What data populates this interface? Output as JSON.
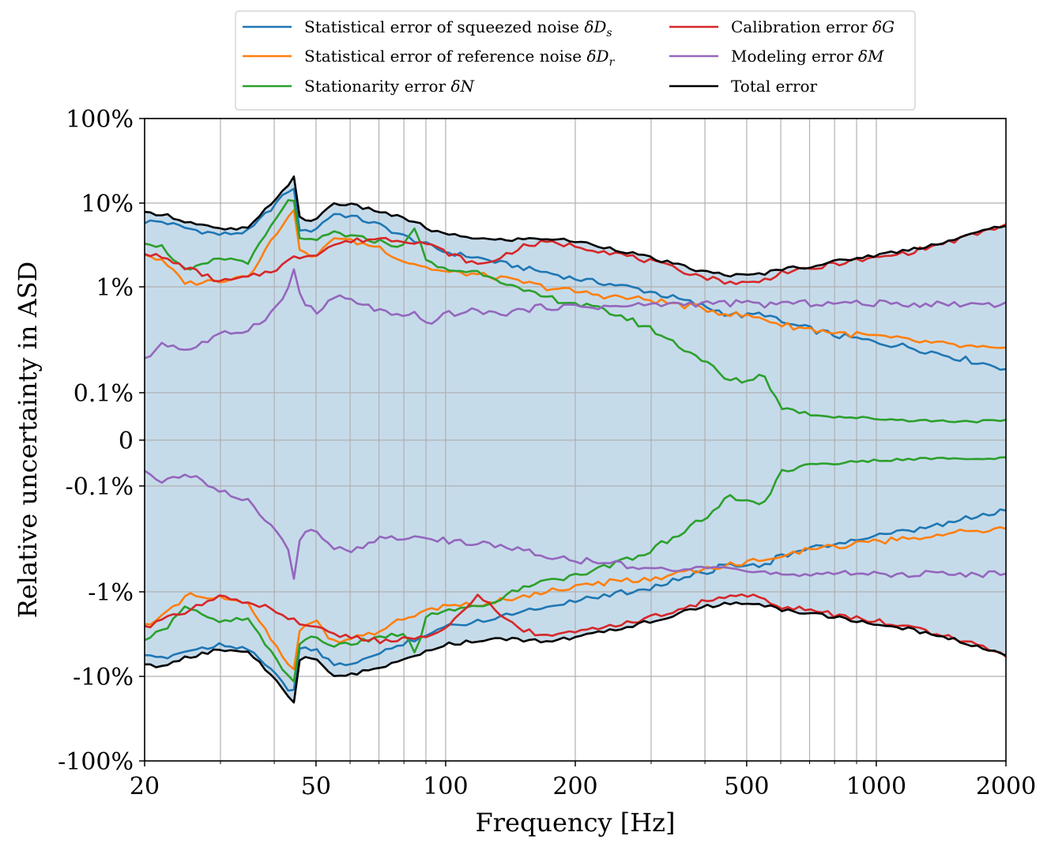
{
  "chart_data": {
    "type": "line",
    "title": "",
    "xlabel": "Frequency [Hz]",
    "ylabel": "Relative uncertainty in ASD",
    "xscale": "log",
    "yscale": "symlog",
    "xlim": [
      20,
      2000
    ],
    "ylim": [
      "-100%",
      "100%"
    ],
    "x_ticks": [
      20,
      50,
      100,
      200,
      500,
      1000,
      2000
    ],
    "x_tick_labels": [
      "20",
      "50",
      "100",
      "200",
      "500",
      "1000",
      "2000"
    ],
    "y_tick_labels": [
      "100%",
      "10%",
      "1%",
      "0.1%",
      "0",
      "-0.1%",
      "-1%",
      "-10%",
      "-100%"
    ],
    "grid": true,
    "legend": "top-center",
    "shaded_band": "Total error",
    "anchors_x": [
      20,
      22,
      25,
      30,
      35,
      40,
      43,
      44,
      46,
      50,
      55,
      60,
      70,
      80,
      85,
      90,
      100,
      120,
      130,
      150,
      170,
      200,
      250,
      300,
      400,
      450,
      500,
      550,
      600,
      700,
      800,
      1000,
      1200,
      1500,
      2000
    ],
    "series": [
      {
        "name": "Statistical error of squeezed noise δDs",
        "color": "#1f77b4",
        "upper": [
          6.0,
          6.0,
          5.0,
          4.2,
          4.6,
          9.5,
          13.5,
          20.0,
          4.3,
          5.0,
          7.5,
          7.0,
          5.5,
          4.0,
          3.6,
          3.2,
          2.6,
          2.2,
          2.0,
          1.7,
          1.5,
          1.25,
          1.05,
          0.9,
          0.65,
          0.56,
          0.53,
          0.56,
          0.46,
          0.4,
          0.35,
          0.3,
          0.27,
          0.22,
          0.17
        ],
        "lower": [
          -6.0,
          -6.0,
          -5.0,
          -4.2,
          -4.6,
          -9.5,
          -13.5,
          -20.0,
          -4.3,
          -5.0,
          -7.5,
          -7.0,
          -5.5,
          -4.0,
          -3.6,
          -3.2,
          -2.6,
          -2.2,
          -2.0,
          -1.7,
          -1.5,
          -1.25,
          -1.05,
          -0.9,
          -0.65,
          -0.56,
          -0.53,
          -0.56,
          -0.46,
          -0.4,
          -0.35,
          -0.3,
          -0.27,
          -0.22,
          -0.17
        ]
      },
      {
        "name": "Statistical error of reference noise δDr",
        "color": "#ff7f0e",
        "upper": [
          2.5,
          2.0,
          1.1,
          1.2,
          1.4,
          4.0,
          7.0,
          10.5,
          2.6,
          2.2,
          4.0,
          3.5,
          3.0,
          2.0,
          1.9,
          1.7,
          1.5,
          1.4,
          1.3,
          1.15,
          1.0,
          0.9,
          0.8,
          0.75,
          0.62,
          0.56,
          0.53,
          0.5,
          0.44,
          0.4,
          0.37,
          0.34,
          0.31,
          0.28,
          0.25
        ],
        "lower": [
          -2.5,
          -2.0,
          -1.1,
          -1.2,
          -1.4,
          -4.0,
          -7.0,
          -10.5,
          -2.6,
          -2.2,
          -4.0,
          -3.5,
          -3.0,
          -2.0,
          -1.9,
          -1.7,
          -1.5,
          -1.4,
          -1.3,
          -1.15,
          -1.0,
          -0.9,
          -0.8,
          -0.75,
          -0.62,
          -0.56,
          -0.53,
          -0.5,
          -0.44,
          -0.4,
          -0.37,
          -0.34,
          -0.31,
          -0.28,
          -0.25
        ]
      },
      {
        "name": "Stationarity error δN",
        "color": "#2ca02c",
        "upper": [
          3.5,
          3.0,
          1.5,
          2.2,
          2.0,
          6.0,
          10.0,
          15.0,
          3.5,
          3.5,
          4.5,
          4.0,
          3.5,
          3.0,
          5.5,
          2.0,
          1.6,
          1.5,
          1.3,
          0.9,
          0.8,
          0.7,
          0.55,
          0.4,
          0.2,
          0.13,
          0.13,
          0.15,
          0.07,
          0.055,
          0.05,
          0.045,
          0.042,
          0.04,
          0.04
        ],
        "lower": [
          -3.5,
          -3.0,
          -1.5,
          -2.2,
          -2.0,
          -6.0,
          -10.0,
          -15.0,
          -3.5,
          -3.5,
          -4.5,
          -4.0,
          -3.5,
          -3.0,
          -5.5,
          -2.0,
          -1.6,
          -1.5,
          -1.3,
          -0.9,
          -0.8,
          -0.7,
          -0.55,
          -0.4,
          -0.2,
          -0.13,
          -0.13,
          -0.15,
          -0.07,
          -0.055,
          -0.05,
          -0.045,
          -0.042,
          -0.04,
          -0.04
        ]
      },
      {
        "name": "Calibration error δG",
        "color": "#d62728",
        "upper": [
          2.6,
          2.2,
          1.7,
          1.15,
          1.3,
          1.6,
          2.0,
          2.2,
          2.3,
          2.5,
          3.2,
          3.5,
          3.8,
          3.6,
          3.5,
          3.3,
          2.6,
          1.8,
          2.1,
          3.0,
          3.4,
          3.1,
          2.5,
          2.0,
          1.3,
          1.15,
          1.1,
          1.2,
          1.5,
          1.6,
          1.9,
          2.2,
          2.6,
          3.5,
          5.5
        ],
        "lower": [
          -2.6,
          -2.2,
          -1.7,
          -1.15,
          -1.3,
          -1.6,
          -2.0,
          -2.2,
          -2.3,
          -2.5,
          -3.2,
          -3.5,
          -3.8,
          -3.6,
          -3.5,
          -3.3,
          -2.6,
          -1.1,
          -1.6,
          -2.8,
          -3.3,
          -3.1,
          -2.5,
          -2.0,
          -1.3,
          -1.15,
          -1.1,
          -1.2,
          -1.5,
          -1.6,
          -1.9,
          -2.2,
          -2.6,
          -3.5,
          -5.5
        ]
      },
      {
        "name": "Modeling error δM",
        "color": "#9467bd",
        "upper": [
          0.2,
          0.3,
          0.25,
          0.35,
          0.4,
          0.6,
          0.9,
          2.0,
          0.8,
          0.55,
          0.8,
          0.75,
          0.6,
          0.5,
          0.55,
          0.45,
          0.55,
          0.6,
          0.55,
          0.6,
          0.65,
          0.65,
          0.65,
          0.68,
          0.7,
          0.7,
          0.7,
          0.68,
          0.7,
          0.7,
          0.7,
          0.7,
          0.69,
          0.69,
          0.69
        ],
        "lower": [
          -0.065,
          -0.09,
          -0.075,
          -0.11,
          -0.14,
          -0.26,
          -0.36,
          -0.9,
          -0.3,
          -0.26,
          -0.38,
          -0.4,
          -0.32,
          -0.3,
          -0.32,
          -0.3,
          -0.33,
          -0.35,
          -0.36,
          -0.4,
          -0.45,
          -0.5,
          -0.55,
          -0.6,
          -0.62,
          -0.63,
          -0.64,
          -0.64,
          -0.66,
          -0.67,
          -0.68,
          -0.68,
          -0.68,
          -0.68,
          -0.68
        ]
      },
      {
        "name": "Total error",
        "color": "#000000",
        "upper": [
          7.5,
          7.5,
          6.0,
          4.8,
          5.0,
          11.0,
          16.0,
          28.0,
          5.8,
          6.5,
          10.0,
          9.5,
          8.0,
          6.5,
          6.0,
          5.0,
          4.2,
          3.8,
          3.6,
          3.7,
          3.8,
          3.5,
          2.8,
          2.2,
          1.5,
          1.4,
          1.35,
          1.45,
          1.65,
          1.75,
          2.0,
          2.4,
          2.8,
          3.6,
          5.6
        ],
        "lower": [
          -7.5,
          -7.5,
          -6.0,
          -4.8,
          -5.0,
          -11.0,
          -16.0,
          -28.0,
          -5.8,
          -6.5,
          -10.0,
          -9.5,
          -8.0,
          -6.5,
          -6.0,
          -5.0,
          -4.2,
          -3.8,
          -3.6,
          -3.7,
          -3.8,
          -3.5,
          -2.8,
          -2.2,
          -1.5,
          -1.4,
          -1.35,
          -1.45,
          -1.65,
          -1.75,
          -2.0,
          -2.4,
          -2.8,
          -3.6,
          -5.6
        ]
      }
    ],
    "legend_entries": [
      {
        "main": "Statistical error of squeezed noise ",
        "sym": "δD",
        "sub": "s",
        "color": "#1f77b4"
      },
      {
        "main": "Statistical error of reference noise ",
        "sym": "δD",
        "sub": "r",
        "color": "#ff7f0e"
      },
      {
        "main": "Stationarity error ",
        "sym": "δN",
        "sub": "",
        "color": "#2ca02c"
      },
      {
        "main": "Calibration error ",
        "sym": "δG",
        "sub": "",
        "color": "#d62728"
      },
      {
        "main": "Modeling error ",
        "sym": "δM",
        "sub": "",
        "color": "#9467bd"
      },
      {
        "main": "Total error",
        "sym": "",
        "sub": "",
        "color": "#000000"
      }
    ],
    "colors": {
      "band": "#c6dbea",
      "grid": "#b0b0b0",
      "axis": "#000000"
    }
  }
}
